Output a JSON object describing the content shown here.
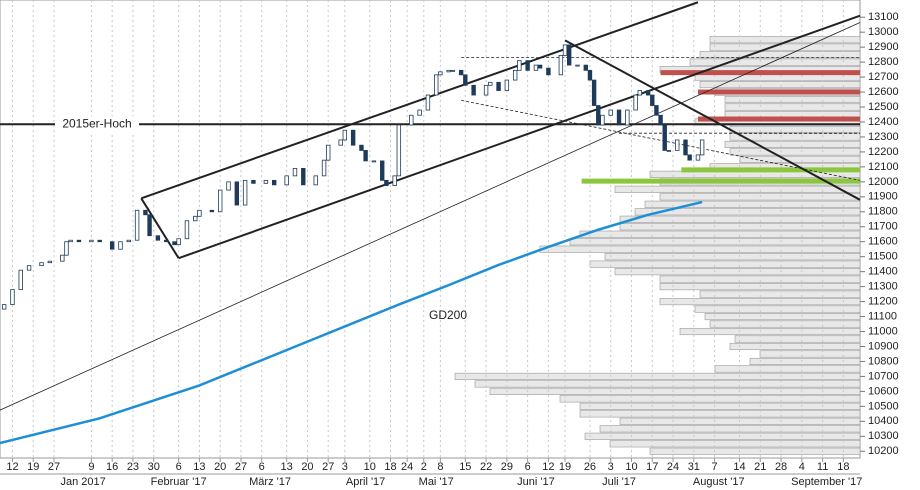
{
  "chart_data": {
    "type": "candlestick",
    "xlim": [
      -3,
      204
    ],
    "ylim": [
      10155,
      13215
    ],
    "yticks": [
      10200,
      10300,
      10400,
      10500,
      10600,
      10700,
      10800,
      10900,
      11000,
      11100,
      11200,
      11300,
      11400,
      11500,
      11600,
      11700,
      11800,
      11900,
      12000,
      12100,
      12200,
      12300,
      12400,
      12500,
      12600,
      12700,
      12800,
      12900,
      13000,
      13100
    ],
    "xticks": [
      {
        "value": 0,
        "label": "12"
      },
      {
        "value": 5,
        "label": "19"
      },
      {
        "value": 10,
        "label": "27"
      },
      {
        "value": 19,
        "label": "9"
      },
      {
        "value": 24,
        "label": "16"
      },
      {
        "value": 29,
        "label": "23"
      },
      {
        "value": 34,
        "label": "30"
      },
      {
        "value": 40,
        "label": "6"
      },
      {
        "value": 45,
        "label": "13"
      },
      {
        "value": 50,
        "label": "20"
      },
      {
        "value": 55,
        "label": "27"
      },
      {
        "value": 60,
        "label": "6"
      },
      {
        "value": 66,
        "label": "13"
      },
      {
        "value": 71,
        "label": "20"
      },
      {
        "value": 76,
        "label": "27"
      },
      {
        "value": 80,
        "label": "3"
      },
      {
        "value": 86,
        "label": "10"
      },
      {
        "value": 91,
        "label": "18"
      },
      {
        "value": 95,
        "label": "24"
      },
      {
        "value": 99,
        "label": "2"
      },
      {
        "value": 103,
        "label": "8"
      },
      {
        "value": 109,
        "label": "15"
      },
      {
        "value": 114,
        "label": "22"
      },
      {
        "value": 119,
        "label": "29"
      },
      {
        "value": 124,
        "label": "6"
      },
      {
        "value": 129,
        "label": "12"
      },
      {
        "value": 133,
        "label": "19"
      },
      {
        "value": 139,
        "label": "26"
      },
      {
        "value": 144,
        "label": "3"
      },
      {
        "value": 149,
        "label": "10"
      },
      {
        "value": 154,
        "label": "17"
      },
      {
        "value": 159,
        "label": "24"
      },
      {
        "value": 164,
        "label": "31"
      },
      {
        "value": 169,
        "label": "7"
      },
      {
        "value": 175,
        "label": "14"
      },
      {
        "value": 180,
        "label": "21"
      },
      {
        "value": 185,
        "label": "28"
      },
      {
        "value": 190,
        "label": "4"
      },
      {
        "value": 195,
        "label": "11"
      },
      {
        "value": 200,
        "label": "18"
      }
    ],
    "month_ticks": [
      {
        "value": 17,
        "label": "Jan 2017"
      },
      {
        "value": 40,
        "label": "Februar '17"
      },
      {
        "value": 62,
        "label": "März '17"
      },
      {
        "value": 85,
        "label": "April '17"
      },
      {
        "value": 102,
        "label": "Mai '17"
      },
      {
        "value": 126,
        "label": "Juni '17"
      },
      {
        "value": 146,
        "label": "Juli '17"
      },
      {
        "value": 170,
        "label": "August '17"
      },
      {
        "value": 196,
        "label": "September '17"
      }
    ],
    "grid": true,
    "candles": {
      "up_color": "#ffffff",
      "down_color": "#1f3b5a",
      "x": [
        -2,
        0,
        2,
        4,
        7,
        9,
        12,
        13,
        14,
        16,
        19,
        21,
        24,
        26,
        28,
        30,
        32,
        33,
        35,
        37,
        39,
        40,
        42,
        44,
        45,
        48,
        50,
        52,
        54,
        56,
        58,
        61,
        63,
        66,
        68,
        70,
        73,
        75,
        76,
        79,
        80,
        82,
        84,
        85,
        87,
        89,
        90,
        92,
        93,
        96,
        98,
        100,
        102,
        103,
        105,
        106,
        108,
        109,
        111,
        114,
        115,
        117,
        119,
        121,
        122,
        124,
        126,
        127,
        129,
        132,
        133,
        134,
        136,
        138,
        139,
        140,
        141,
        142,
        144,
        146,
        148,
        150,
        151,
        153,
        154,
        155,
        156,
        157,
        158,
        160,
        162,
        163,
        165,
        166
      ],
      "open": [
        11150,
        11180,
        11280,
        11410,
        11440,
        11460,
        11470,
        11510,
        11600,
        11610,
        11600,
        11610,
        11600,
        11550,
        11600,
        11610,
        11810,
        11780,
        11640,
        11610,
        11600,
        11580,
        11620,
        11740,
        11770,
        11810,
        11800,
        11945,
        12000,
        11845,
        12010,
        11990,
        12010,
        11980,
        12040,
        12090,
        11980,
        12040,
        12145,
        12245,
        12280,
        12345,
        12245,
        12210,
        12140,
        12140,
        12010,
        11975,
        12040,
        12380,
        12445,
        12480,
        12580,
        12715,
        12735,
        12745,
        12745,
        12715,
        12645,
        12580,
        12645,
        12665,
        12610,
        12680,
        12745,
        12810,
        12745,
        12780,
        12760,
        12715,
        12845,
        12915,
        12780,
        12780,
        12745,
        12680,
        12510,
        12380,
        12445,
        12480,
        12380,
        12480,
        12580,
        12610,
        12580,
        12510,
        12445,
        12380,
        12210,
        12210,
        12280,
        12180,
        12145,
        12180
      ],
      "close": [
        11180,
        11280,
        11410,
        11440,
        11460,
        11470,
        11510,
        11600,
        11610,
        11600,
        11610,
        11600,
        11550,
        11600,
        11610,
        11810,
        11780,
        11640,
        11610,
        11600,
        11580,
        11620,
        11740,
        11770,
        11810,
        11800,
        11945,
        12000,
        11845,
        12010,
        11990,
        12010,
        11980,
        12040,
        12090,
        11980,
        12040,
        12145,
        12245,
        12280,
        12345,
        12245,
        12210,
        12140,
        12140,
        12010,
        11975,
        12040,
        12380,
        12445,
        12480,
        12580,
        12715,
        12735,
        12745,
        12745,
        12715,
        12645,
        12580,
        12645,
        12665,
        12610,
        12680,
        12745,
        12810,
        12745,
        12780,
        12760,
        12715,
        12845,
        12915,
        12780,
        12780,
        12745,
        12680,
        12510,
        12380,
        12445,
        12480,
        12380,
        12480,
        12580,
        12610,
        12580,
        12510,
        12445,
        12380,
        12210,
        12210,
        12280,
        12180,
        12145,
        12180,
        12280
      ]
    },
    "ma": {
      "name": "GD200",
      "color": "#1e8fd5",
      "x": [
        -3,
        21,
        45,
        69,
        93,
        105,
        117,
        129,
        141,
        153,
        166
      ],
      "values": [
        10255,
        10420,
        10640,
        10910,
        11180,
        11310,
        11445,
        11565,
        11680,
        11780,
        11865
      ]
    },
    "trendlines": [
      {
        "style": "thick",
        "x": [
          31,
          165
        ],
        "y": [
          11890,
          13200
        ]
      },
      {
        "style": "thick",
        "x": [
          31,
          40
        ],
        "y": [
          11890,
          11490
        ]
      },
      {
        "style": "thick",
        "x": [
          40,
          204
        ],
        "y": [
          11490,
          13110
        ]
      },
      {
        "style": "thin",
        "x": [
          -3,
          204
        ],
        "y": [
          10475,
          13065
        ]
      },
      {
        "style": "thick",
        "x": [
          133,
          204
        ],
        "y": [
          12945,
          11880
        ]
      },
      {
        "style": "thick",
        "x": [
          -3,
          204
        ],
        "y": [
          12385,
          12385
        ],
        "label": "2015er-Hoch"
      },
      {
        "style": "dashed",
        "x": [
          108,
          204
        ],
        "y": [
          12830,
          12830
        ]
      },
      {
        "style": "dashed",
        "x": [
          108,
          204
        ],
        "y": [
          12545,
          12010
        ]
      },
      {
        "style": "dashed",
        "x": [
          146,
          204
        ],
        "y": [
          12325,
          12325
        ]
      }
    ],
    "zones": [
      {
        "color": "#c0504d",
        "x": [
          156,
          204
        ],
        "y": 12730
      },
      {
        "color": "#c0504d",
        "x": [
          165,
          204
        ],
        "y": 12600
      },
      {
        "color": "#c0504d",
        "x": [
          165,
          204
        ],
        "y": 12420
      },
      {
        "color": "#8cc63f",
        "x": [
          161,
          204
        ],
        "y": 12080
      },
      {
        "color": "#8cc63f",
        "x": [
          137,
          204
        ],
        "y": 12005
      }
    ],
    "volume_profile": {
      "color": "#e8e8e8",
      "prices": [
        12950,
        12900,
        12850,
        12800,
        12750,
        12700,
        12650,
        12600,
        12550,
        12500,
        12450,
        12400,
        12350,
        12300,
        12250,
        12200,
        12150,
        12100,
        12050,
        12000,
        11950,
        11900,
        11850,
        11800,
        11750,
        11700,
        11650,
        11600,
        11550,
        11500,
        11450,
        11400,
        11350,
        11300,
        11250,
        11200,
        11150,
        11100,
        11050,
        11000,
        10950,
        10900,
        10850,
        10800,
        10750,
        10700,
        10650,
        10600,
        10550,
        10500,
        10450,
        10400,
        10350,
        10300,
        10250,
        10200
      ],
      "values": [
        150,
        150,
        160,
        170,
        200,
        165,
        160,
        145,
        135,
        135,
        135,
        165,
        130,
        130,
        135,
        130,
        120,
        150,
        210,
        200,
        245,
        200,
        215,
        225,
        240,
        240,
        280,
        290,
        320,
        255,
        270,
        245,
        200,
        200,
        160,
        200,
        165,
        155,
        150,
        180,
        125,
        130,
        100,
        110,
        145,
        405,
        385,
        370,
        300,
        280,
        280,
        240,
        260,
        275,
        250,
        210
      ]
    }
  }
}
